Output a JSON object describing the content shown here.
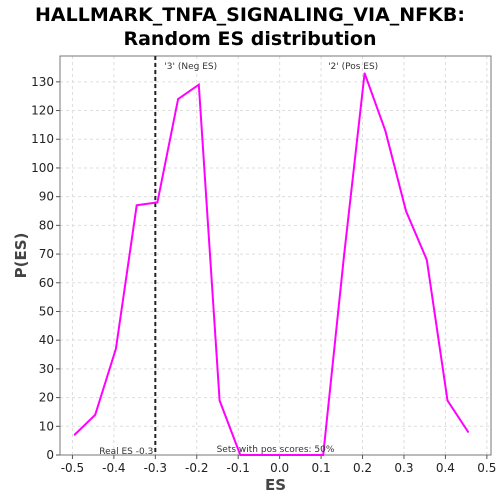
{
  "chart_data": {
    "type": "line",
    "title_line1": "HALLMARK_TNFA_SIGNALING_VIA_NFKB:",
    "title_line2": "Random ES distribution",
    "xlabel": "ES",
    "ylabel": "P(ES)",
    "xlim": [
      -0.53,
      0.51
    ],
    "ylim": [
      0,
      139
    ],
    "xticks": [
      -0.5,
      -0.4,
      -0.3,
      -0.2,
      -0.1,
      0.0,
      0.1,
      0.2,
      0.3,
      0.4,
      0.5
    ],
    "xtick_labels": [
      "-0.5",
      "-0.4",
      "-0.3",
      "-0.2",
      "-0.1",
      "0.0",
      "0.1",
      "0.2",
      "0.3",
      "0.4",
      "0.5"
    ],
    "yticks": [
      0,
      10,
      20,
      30,
      40,
      50,
      60,
      70,
      80,
      90,
      100,
      110,
      120,
      130
    ],
    "ytick_labels": [
      "0",
      "10",
      "20",
      "30",
      "40",
      "50",
      "60",
      "70",
      "80",
      "90",
      "100",
      "110",
      "120",
      "130"
    ],
    "grid": true,
    "series": [
      {
        "color": "#ff00ff",
        "x": [
          -0.495,
          -0.445,
          -0.395,
          -0.345,
          -0.295,
          -0.245,
          -0.195,
          -0.145,
          -0.095,
          -0.045,
          0.005,
          0.055,
          0.105,
          0.155,
          0.205,
          0.255,
          0.305,
          0.355,
          0.405,
          0.455
        ],
        "y": [
          7,
          14,
          37,
          87,
          88,
          124,
          129,
          19,
          0,
          0,
          0,
          0,
          0,
          69,
          133,
          113,
          85,
          68,
          19,
          8
        ]
      }
    ],
    "real_es": -0.3,
    "real_es_label": "Real ES -0.3",
    "neg_label": "'3' (Neg ES)",
    "pos_label": "'2' (Pos ES)",
    "neg_color": "#0000ff",
    "pos_color": "#ff0000",
    "sets_label": "Sets with pos scores: 50%"
  }
}
